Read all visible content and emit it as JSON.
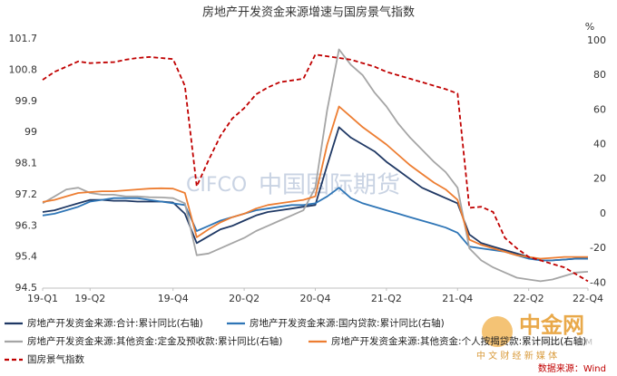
{
  "chart_data": {
    "type": "line",
    "title": "房地产开发资金来源增速与国房景气指数",
    "y2_label": "%",
    "categories": [
      "19-Q1",
      null,
      null,
      null,
      "19-Q2",
      null,
      null,
      null,
      null,
      null,
      null,
      "19-Q4",
      null,
      null,
      null,
      null,
      null,
      "20-Q2",
      null,
      null,
      null,
      null,
      null,
      "20-Q4",
      null,
      null,
      null,
      null,
      null,
      "21-Q2",
      null,
      null,
      null,
      null,
      null,
      "21-Q4",
      null,
      null,
      null,
      null,
      null,
      "22-Q2",
      null,
      null,
      null,
      null,
      "22-Q4"
    ],
    "ylim": [
      94.5,
      101.7
    ],
    "yticks": [
      94.5,
      95.4,
      96.3,
      97.2,
      98.1,
      99,
      99.9,
      100.8,
      101.7
    ],
    "y2lim": [
      -43,
      101
    ],
    "y2ticks": [
      -40,
      -20,
      0,
      20,
      40,
      60,
      80,
      100
    ],
    "grid": false,
    "series": [
      {
        "name": "房地产开发资金来源:合计:累计同比(右轴)",
        "color": "#1f3864",
        "axis": "y2",
        "values": [
          1,
          2,
          4,
          6,
          8,
          8,
          7.5,
          7.5,
          7,
          7,
          7,
          6.5,
          0,
          -17,
          -13,
          -9,
          -7,
          -4,
          -1,
          1,
          2,
          3,
          4,
          5,
          28,
          50,
          44,
          40,
          36,
          30,
          25,
          20,
          15,
          12,
          9,
          6,
          -12,
          -17,
          -19,
          -21,
          -23,
          -25,
          -27,
          -27,
          -26.5,
          -26,
          -26
        ]
      },
      {
        "name": "房地产开发资金来源:国内贷款:累计同比(右轴)",
        "color": "#2e75b6",
        "axis": "y2",
        "values": [
          -1,
          0,
          2,
          4,
          7,
          8,
          9,
          9,
          9,
          8,
          7,
          6,
          5,
          -10,
          -7,
          -4,
          -2,
          0,
          2,
          3,
          4,
          5,
          5,
          6,
          10,
          15,
          9,
          6,
          4,
          2,
          0,
          -2,
          -4,
          -6,
          -8,
          -11,
          -19,
          -20,
          -21,
          -22,
          -24,
          -26,
          -27,
          -27,
          -26.5,
          -26,
          -26
        ]
      },
      {
        "name": "房地产开发资金来源:其他资金:定金及预收款:累计同比(右轴)",
        "color": "#a5a5a5",
        "axis": "y2",
        "values": [
          6,
          10,
          14,
          15,
          12,
          11,
          11,
          10,
          10,
          9.5,
          9.4,
          9,
          6,
          -24,
          -23,
          -20,
          -17,
          -14,
          -10,
          -7,
          -4,
          -1,
          2,
          15,
          60,
          95,
          86,
          80,
          70,
          62,
          52,
          44,
          37,
          30,
          24,
          15,
          -20,
          -27,
          -31,
          -34,
          -37,
          -38,
          -39,
          -38,
          -36,
          -34,
          -33.5
        ]
      },
      {
        "name": "房地产开发资金来源:其他资金:个人按揭贷款:累计同比(右轴)",
        "color": "#ed7d31",
        "axis": "y2",
        "values": [
          6.8,
          8,
          10,
          12,
          12.5,
          13,
          13,
          13.5,
          14,
          14.5,
          14.7,
          14.5,
          12,
          -13.6,
          -9,
          -5,
          -2,
          0,
          3,
          5,
          6,
          7,
          8,
          10,
          40,
          62,
          56,
          50,
          45,
          40,
          34,
          28,
          23,
          18,
          14,
          8,
          -15,
          -18,
          -20,
          -22,
          -24,
          -25,
          -26,
          -25.5,
          -25,
          -25,
          -25
        ]
      },
      {
        "name": "国房景气指数",
        "color": "#c00000",
        "axis": "y",
        "style": "dashed",
        "values": [
          100.52,
          100.75,
          100.9,
          101.05,
          101.0,
          101.02,
          101.03,
          101.1,
          101.15,
          101.18,
          101.15,
          101.12,
          100.34,
          97.44,
          98.2,
          98.9,
          99.4,
          99.7,
          100.1,
          100.3,
          100.45,
          100.5,
          100.55,
          101.25,
          101.2,
          101.15,
          101.1,
          101.0,
          100.9,
          100.75,
          100.65,
          100.55,
          100.45,
          100.35,
          100.25,
          100.12,
          96.82,
          96.85,
          96.7,
          95.95,
          95.65,
          95.4,
          95.3,
          95.2,
          95.1,
          94.9,
          94.7
        ]
      }
    ],
    "annotations": {
      "watermark": "CIFCO",
      "watermark_cn": "中国国际期货",
      "logo": "中金网",
      "logo_sub": "中 文 财 经 新 媒 体",
      "logo_url": "CNGOLD.COM",
      "source": "数据来源：Wind"
    }
  }
}
